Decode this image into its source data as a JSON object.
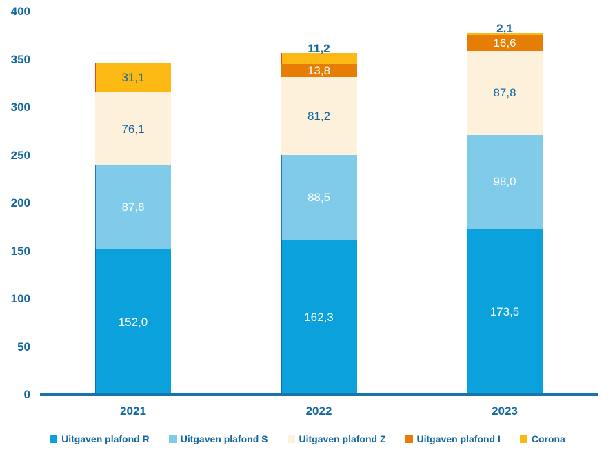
{
  "chart_data": {
    "type": "bar",
    "stacked": true,
    "title": "",
    "xlabel": "",
    "ylabel": "",
    "categories": [
      "2021",
      "2022",
      "2023"
    ],
    "series": [
      {
        "name": "Uitgaven plafond R",
        "color": "#0AA1DC",
        "edge_color": "#0C66C2",
        "values": [
          152.0,
          162.3,
          173.5
        ],
        "labels": [
          "152,0",
          "162,3",
          "173,5"
        ],
        "label_color": "#FFFFFF",
        "label_placement": [
          "inside",
          "inside",
          "inside"
        ]
      },
      {
        "name": "Uitgaven plafond S",
        "color": "#7FCBE9",
        "edge_color": "#2571CE",
        "values": [
          87.8,
          88.5,
          98.0
        ],
        "labels": [
          "87,8",
          "88,5",
          "98,0"
        ],
        "label_color": "#FFFFFF",
        "label_placement": [
          "inside",
          "inside",
          "inside"
        ]
      },
      {
        "name": "Uitgaven plafond Z",
        "color": "#FDF1DC",
        "edge_color": null,
        "values": [
          76.1,
          81.2,
          87.8
        ],
        "labels": [
          "76,1",
          "81,2",
          "87,8"
        ],
        "label_color": "#15689F",
        "label_placement": [
          "inside",
          "inside",
          "inside"
        ]
      },
      {
        "name": "Uitgaven plafond I",
        "color": "#E67E06",
        "edge_color": null,
        "values": [
          0,
          13.8,
          16.6
        ],
        "labels": [
          "",
          "13,8",
          "16,6"
        ],
        "label_color": "#FFFFFF",
        "label_placement": [
          "inside",
          "inside",
          "inside"
        ]
      },
      {
        "name": "Corona",
        "color": "#FCB813",
        "edge_color": "#E8491C",
        "values": [
          31.1,
          11.2,
          2.1
        ],
        "labels": [
          "31,1",
          "11,2",
          "2,1"
        ],
        "label_color": "#15689F",
        "label_placement": [
          "inside",
          "outside",
          "outside"
        ]
      }
    ],
    "y_ticks": [
      0,
      50,
      100,
      150,
      200,
      250,
      300,
      350,
      400
    ],
    "ylim": [
      0,
      400
    ],
    "grid": false,
    "legend_position": "bottom"
  },
  "colors": {
    "axis_text": "#15689F",
    "axis_line": "#1B74A8",
    "outside_label": "#15689F"
  }
}
